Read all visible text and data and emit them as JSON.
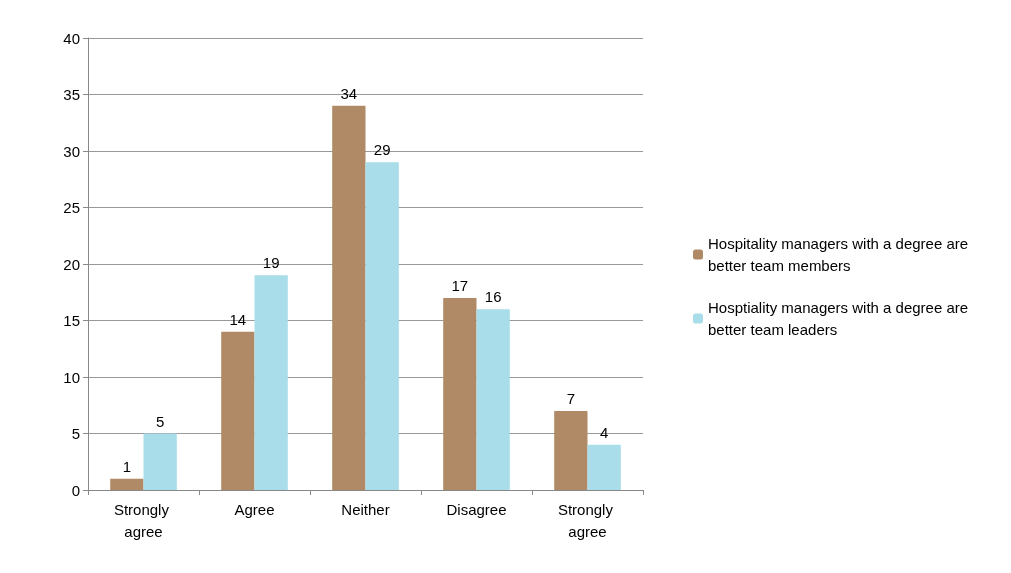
{
  "chart_data": {
    "type": "bar",
    "categories": [
      "Strongly agree",
      "Agree",
      "Neither",
      "Disagree",
      "Strongly agree"
    ],
    "series": [
      {
        "name": "Hospitality managers with a degree are better team members",
        "color": "#b08a66",
        "values": [
          1,
          14,
          34,
          17,
          7
        ]
      },
      {
        "name": "Hosptiality managers with a degree are better team leaders",
        "color": "#a9dde9",
        "values": [
          5,
          19,
          29,
          16,
          4
        ]
      }
    ],
    "ylim": [
      0,
      40
    ],
    "yticks": [
      0,
      5,
      10,
      15,
      20,
      25,
      30,
      35,
      40
    ],
    "grid": "y",
    "legend": "right",
    "data_labels": true
  }
}
